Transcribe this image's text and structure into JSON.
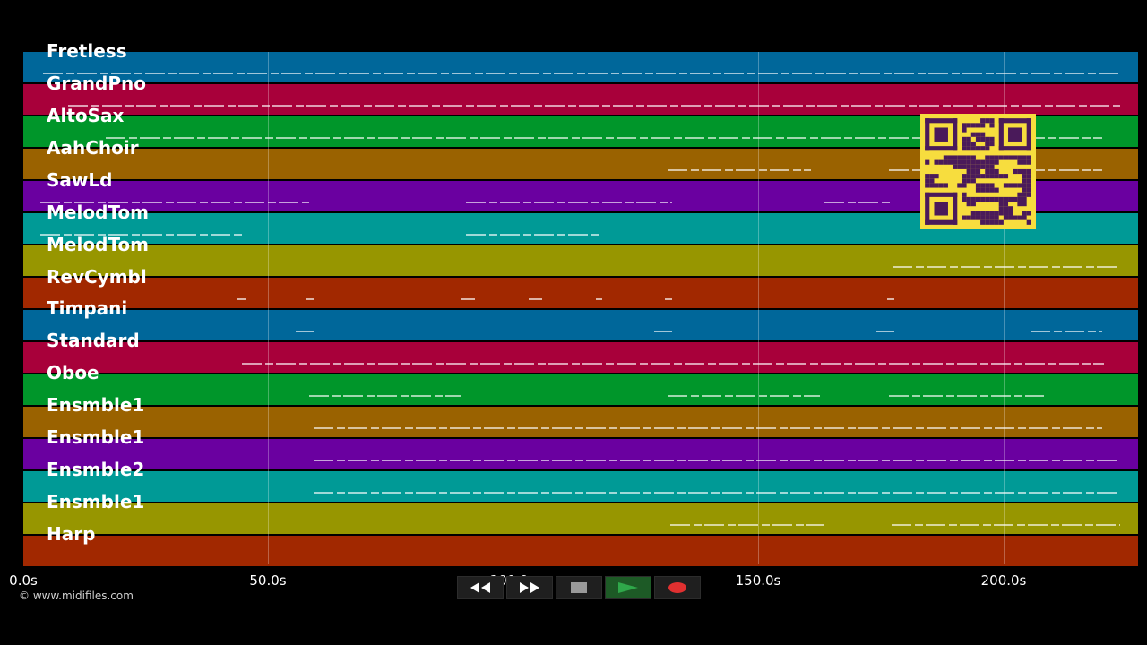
{
  "tracks": [
    {
      "name": "Fretless",
      "color": "#00679a"
    },
    {
      "name": "GrandPno",
      "color": "#a8003a"
    },
    {
      "name": "AltoSax",
      "color": "#00962a"
    },
    {
      "name": "AahChoir",
      "color": "#9a6200"
    },
    {
      "name": "SawLd",
      "color": "#6a00a0"
    },
    {
      "name": "MelodTom",
      "color": "#009a96"
    },
    {
      "name": "MelodTom",
      "color": "#979600"
    },
    {
      "name": "RevCymbl",
      "color": "#a12800"
    },
    {
      "name": "Timpani",
      "color": "#00679a"
    },
    {
      "name": "Standard",
      "color": "#a8003a"
    },
    {
      "name": "Oboe",
      "color": "#00962a"
    },
    {
      "name": "Ensmble1",
      "color": "#9a6200"
    },
    {
      "name": "Ensmble1",
      "color": "#6a00a0"
    },
    {
      "name": "Ensmble2",
      "color": "#009a96"
    },
    {
      "name": "Ensmble1",
      "color": "#979600"
    },
    {
      "name": "Harp",
      "color": "#a12800"
    }
  ],
  "timeline": {
    "ticks": [
      "0.0s",
      "50.0s",
      "100.0s",
      "150.0s",
      "200.0s"
    ]
  },
  "credit": "© www.midifiles.com",
  "controls": {
    "rewind_icon": "rewind-icon",
    "forward_icon": "fast-forward-icon",
    "stop_icon": "stop-icon",
    "play_icon": "play-icon",
    "record_icon": "record-icon",
    "accent_play": "#2fa84a",
    "accent_record": "#e03030"
  },
  "qr": {
    "color_fg": "#4a1a5a",
    "color_bg": "#f7dd3e"
  }
}
